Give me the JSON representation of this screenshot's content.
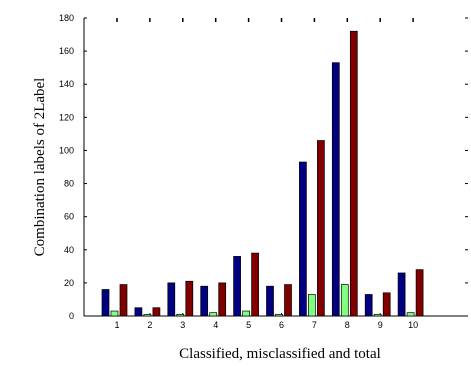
{
  "chart_data": {
    "type": "bar",
    "title": "",
    "xlabel": "Classified, misclassified and total",
    "ylabel": "Combination labels of 2Label",
    "categories": [
      "1",
      "2",
      "3",
      "4",
      "5",
      "6",
      "7",
      "8",
      "9",
      "10"
    ],
    "series": [
      {
        "color": "#000080",
        "values": [
          16,
          5,
          20,
          18,
          36,
          18,
          93,
          153,
          13,
          26
        ]
      },
      {
        "color": "#80ff80",
        "values": [
          3,
          1,
          1,
          2,
          3,
          1,
          13,
          19,
          1,
          2
        ]
      },
      {
        "color": "#800000",
        "values": [
          19,
          5,
          21,
          20,
          38,
          19,
          106,
          172,
          14,
          28
        ]
      }
    ],
    "ylim": [
      0,
      180
    ],
    "yticks": [
      0,
      20,
      40,
      60,
      80,
      100,
      120,
      140,
      160,
      180
    ],
    "grid": false,
    "legend": "none"
  }
}
